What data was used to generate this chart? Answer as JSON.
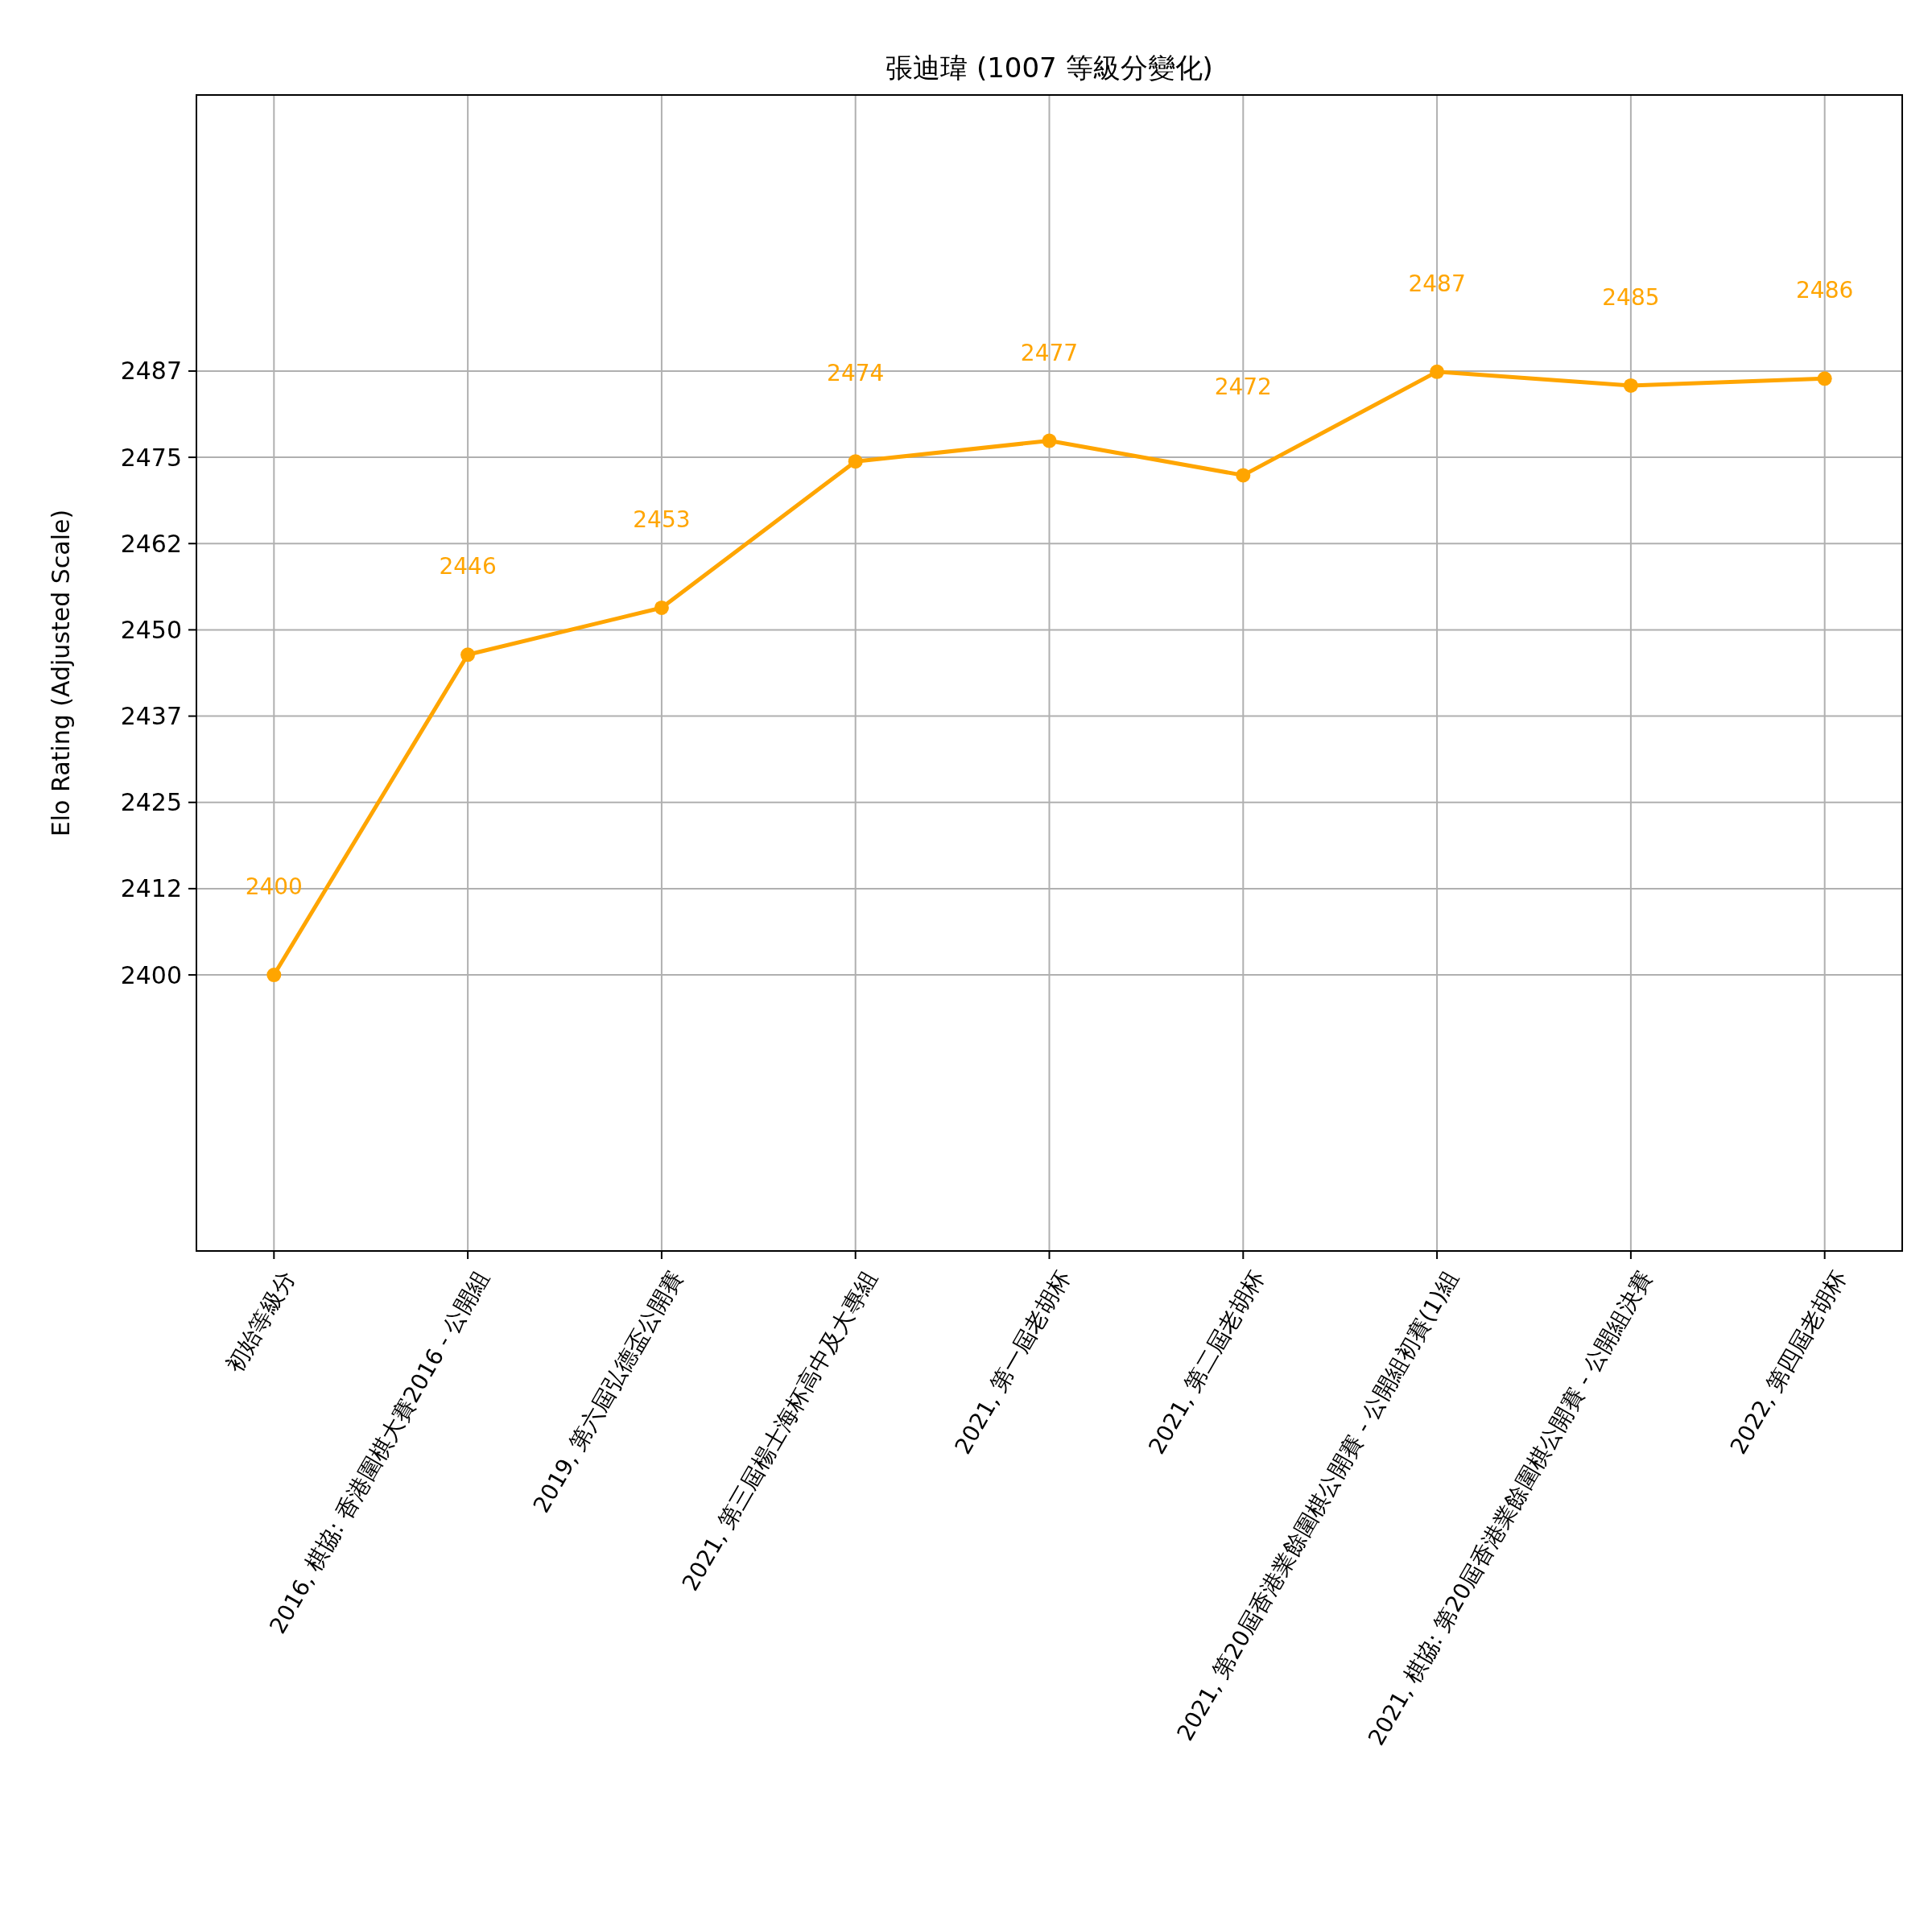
{
  "chart_data": {
    "type": "line",
    "title": "張迪瑋 (1007 等級分變化)",
    "ylabel": "Elo Rating (Adjusted Scale)",
    "categories": [
      "初始等級分",
      "2016, 棋協: 香港圍棋大賽2016 - 公開組",
      "2019, 第六屆弘德盃公開賽",
      "2021, 第三屆楊士海杯高中及大專組",
      "2021, 第一屆老胡杯",
      "2021, 第二屆老胡杯",
      "2021, 第20屆香港業餘圍棋公開賽 - 公開組初賽(1)組",
      "2021, 棋協: 第20屆香港業餘圍棋公開賽 - 公開組決賽",
      "2022, 第四屆老胡杯"
    ],
    "series": [
      {
        "color": "#ffa500",
        "values": [
          2400,
          2446.4,
          2453.2,
          2474.4,
          2477.4,
          2472.4,
          2487.4,
          2485.4,
          2486.4
        ],
        "value_labels": [
          "2400",
          "2446",
          "2453",
          "2474",
          "2477",
          "2472",
          "2487",
          "2485",
          "2486"
        ]
      }
    ],
    "ylim": [
      2360,
      2527.5
    ],
    "yticks": [
      2400,
      {
        "value": 2412.5,
        "label": "2412"
      },
      2425,
      {
        "value": 2437.5,
        "label": "2437"
      },
      2450,
      {
        "value": 2462.5,
        "label": "2462"
      },
      2475,
      {
        "value": 2487.5,
        "label": "2487"
      }
    ],
    "grid": true,
    "marker": "circle",
    "line_style": "solid"
  }
}
